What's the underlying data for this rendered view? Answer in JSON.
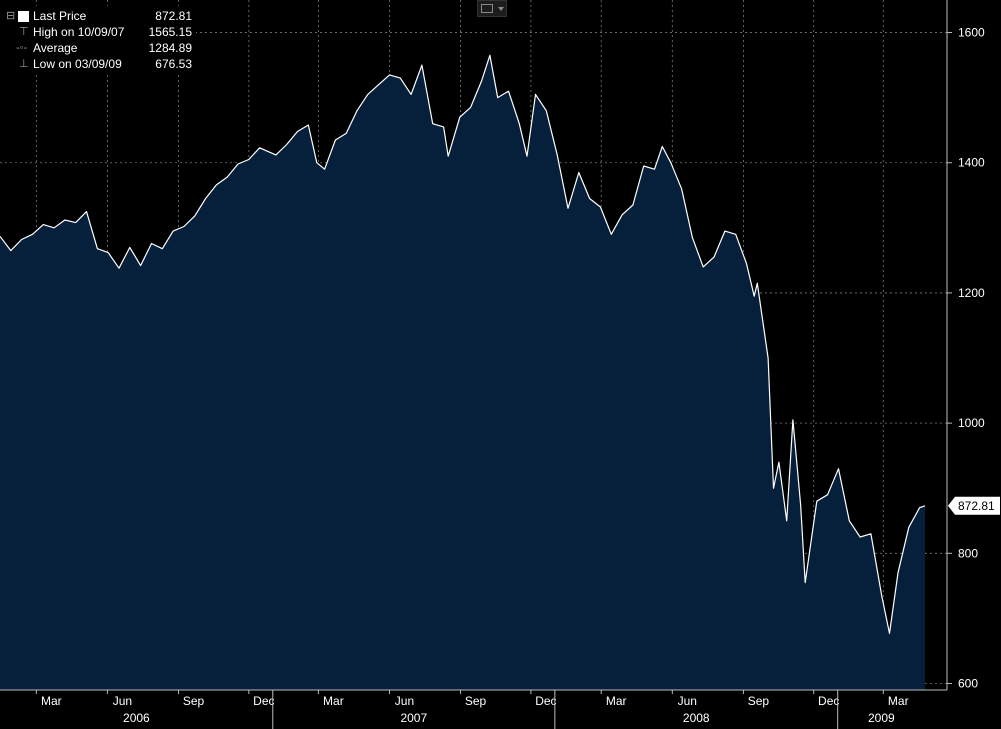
{
  "legend": {
    "last_price_label": "Last Price",
    "last_price_value": "872.81",
    "high_label": "High on 10/09/07",
    "high_value": "1565.15",
    "average_label": "Average",
    "average_value": "1284.89",
    "low_label": "Low on 03/09/09",
    "low_value": "676.53"
  },
  "toolbar": {
    "chart_type_icon": "line-chart-icon"
  },
  "colors": {
    "background": "#000000",
    "area_fill": "#061f3b",
    "line": "#ffffff",
    "grid": "#7a7a7a"
  },
  "chart_data": {
    "type": "area",
    "title": "",
    "xlabel": "",
    "ylabel": "",
    "ylim": [
      590,
      1650
    ],
    "xlim": [
      "2006-01-13",
      "2009-04-24"
    ],
    "y_ticks": [
      600,
      800,
      1000,
      1200,
      1400,
      1600
    ],
    "x_month_ticks": [
      {
        "label": "Mar",
        "date": "2006-03-01"
      },
      {
        "label": "Jun",
        "date": "2006-06-01"
      },
      {
        "label": "Sep",
        "date": "2006-09-01"
      },
      {
        "label": "Dec",
        "date": "2006-12-01"
      },
      {
        "label": "Mar",
        "date": "2007-03-01"
      },
      {
        "label": "Jun",
        "date": "2007-06-01"
      },
      {
        "label": "Sep",
        "date": "2007-09-01"
      },
      {
        "label": "Dec",
        "date": "2007-12-01"
      },
      {
        "label": "Mar",
        "date": "2008-03-01"
      },
      {
        "label": "Jun",
        "date": "2008-06-01"
      },
      {
        "label": "Sep",
        "date": "2008-09-01"
      },
      {
        "label": "Dec",
        "date": "2008-12-01"
      },
      {
        "label": "Mar",
        "date": "2009-03-01"
      }
    ],
    "x_year_ticks": [
      {
        "label": "2006",
        "start": "2006-01-13",
        "end": "2007-01-01"
      },
      {
        "label": "2007",
        "start": "2007-01-01",
        "end": "2008-01-01"
      },
      {
        "label": "2008",
        "start": "2008-01-01",
        "end": "2009-01-01"
      },
      {
        "label": "2009",
        "start": "2009-01-01",
        "end": "2009-04-24"
      }
    ],
    "last_value_label": "872.81",
    "grid": true,
    "series": [
      {
        "name": "Last Price",
        "points": [
          [
            "2006-01-13",
            1287
          ],
          [
            "2006-01-27",
            1265
          ],
          [
            "2006-02-10",
            1282
          ],
          [
            "2006-02-24",
            1290
          ],
          [
            "2006-03-10",
            1305
          ],
          [
            "2006-03-24",
            1300
          ],
          [
            "2006-04-07",
            1312
          ],
          [
            "2006-04-21",
            1308
          ],
          [
            "2006-05-05",
            1325
          ],
          [
            "2006-05-19",
            1268
          ],
          [
            "2006-06-02",
            1262
          ],
          [
            "2006-06-16",
            1238
          ],
          [
            "2006-06-30",
            1270
          ],
          [
            "2006-07-14",
            1242
          ],
          [
            "2006-07-28",
            1276
          ],
          [
            "2006-08-11",
            1268
          ],
          [
            "2006-08-25",
            1295
          ],
          [
            "2006-09-08",
            1302
          ],
          [
            "2006-09-22",
            1318
          ],
          [
            "2006-10-06",
            1345
          ],
          [
            "2006-10-20",
            1366
          ],
          [
            "2006-11-03",
            1378
          ],
          [
            "2006-11-17",
            1398
          ],
          [
            "2006-12-01",
            1405
          ],
          [
            "2006-12-15",
            1423
          ],
          [
            "2007-01-05",
            1412
          ],
          [
            "2007-01-19",
            1428
          ],
          [
            "2007-02-02",
            1448
          ],
          [
            "2007-02-16",
            1458
          ],
          [
            "2007-02-27",
            1400
          ],
          [
            "2007-03-09",
            1390
          ],
          [
            "2007-03-23",
            1435
          ],
          [
            "2007-04-06",
            1445
          ],
          [
            "2007-04-20",
            1480
          ],
          [
            "2007-05-04",
            1505
          ],
          [
            "2007-05-18",
            1520
          ],
          [
            "2007-06-01",
            1535
          ],
          [
            "2007-06-15",
            1530
          ],
          [
            "2007-06-29",
            1505
          ],
          [
            "2007-07-13",
            1550
          ],
          [
            "2007-07-27",
            1460
          ],
          [
            "2007-08-10",
            1455
          ],
          [
            "2007-08-16",
            1410
          ],
          [
            "2007-08-31",
            1470
          ],
          [
            "2007-09-14",
            1485
          ],
          [
            "2007-09-28",
            1525
          ],
          [
            "2007-10-09",
            1565
          ],
          [
            "2007-10-19",
            1500
          ],
          [
            "2007-11-02",
            1510
          ],
          [
            "2007-11-16",
            1460
          ],
          [
            "2007-11-26",
            1410
          ],
          [
            "2007-12-07",
            1505
          ],
          [
            "2007-12-21",
            1480
          ],
          [
            "2008-01-04",
            1412
          ],
          [
            "2008-01-18",
            1330
          ],
          [
            "2008-02-01",
            1385
          ],
          [
            "2008-02-15",
            1345
          ],
          [
            "2008-02-29",
            1332
          ],
          [
            "2008-03-14",
            1290
          ],
          [
            "2008-03-28",
            1320
          ],
          [
            "2008-04-11",
            1335
          ],
          [
            "2008-04-25",
            1395
          ],
          [
            "2008-05-09",
            1390
          ],
          [
            "2008-05-19",
            1425
          ],
          [
            "2008-05-30",
            1400
          ],
          [
            "2008-06-13",
            1360
          ],
          [
            "2008-06-27",
            1285
          ],
          [
            "2008-07-11",
            1240
          ],
          [
            "2008-07-25",
            1255
          ],
          [
            "2008-08-08",
            1295
          ],
          [
            "2008-08-22",
            1290
          ],
          [
            "2008-09-05",
            1245
          ],
          [
            "2008-09-15",
            1195
          ],
          [
            "2008-09-19",
            1215
          ],
          [
            "2008-10-03",
            1100
          ],
          [
            "2008-10-10",
            900
          ],
          [
            "2008-10-17",
            940
          ],
          [
            "2008-10-27",
            850
          ],
          [
            "2008-11-04",
            1005
          ],
          [
            "2008-11-14",
            875
          ],
          [
            "2008-11-20",
            755
          ],
          [
            "2008-12-05",
            880
          ],
          [
            "2008-12-19",
            890
          ],
          [
            "2009-01-02",
            930
          ],
          [
            "2009-01-16",
            850
          ],
          [
            "2009-01-30",
            825
          ],
          [
            "2009-02-13",
            830
          ],
          [
            "2009-02-27",
            735
          ],
          [
            "2009-03-09",
            677
          ],
          [
            "2009-03-20",
            770
          ],
          [
            "2009-04-03",
            840
          ],
          [
            "2009-04-17",
            870
          ],
          [
            "2009-04-24",
            873
          ]
        ]
      }
    ]
  }
}
